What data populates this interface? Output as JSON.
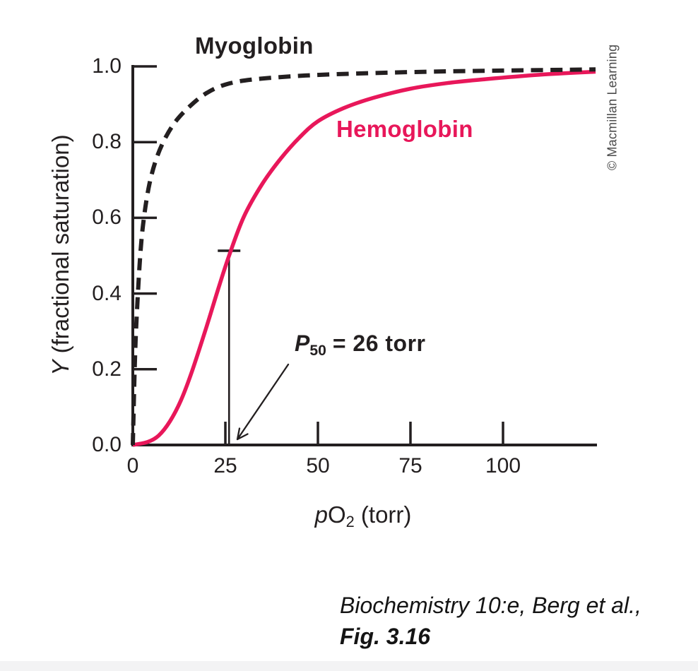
{
  "chart_data": {
    "type": "line",
    "title": "",
    "xlabel": {
      "italic": "p",
      "main": "O",
      "sub": "2",
      "suffix": " (torr)"
    },
    "ylabel": {
      "italic": "Y",
      "suffix": " (fractional saturation)"
    },
    "x_ticks": [
      "0",
      "25",
      "50",
      "75",
      "100"
    ],
    "y_ticks": [
      "0.0",
      "0.2",
      "0.4",
      "0.6",
      "0.8",
      "1.0"
    ],
    "xlim": [
      0,
      125
    ],
    "ylim": [
      0,
      1.0
    ],
    "grid": false,
    "legend_position": "inline-curve-labels",
    "axis_color": "#231f20",
    "series": [
      {
        "name": "Myoglobin",
        "line_style": "dashed",
        "color": "#231f20",
        "points": [
          [
            0,
            0
          ],
          [
            0.5,
            0.2
          ],
          [
            1,
            0.33
          ],
          [
            2,
            0.5
          ],
          [
            3,
            0.6
          ],
          [
            4.5,
            0.69
          ],
          [
            6.5,
            0.76
          ],
          [
            9,
            0.815
          ],
          [
            12,
            0.86
          ],
          [
            16,
            0.9
          ],
          [
            20,
            0.93
          ],
          [
            25,
            0.952
          ],
          [
            32,
            0.965
          ],
          [
            45,
            0.975
          ],
          [
            60,
            0.981
          ],
          [
            80,
            0.986
          ],
          [
            100,
            0.989
          ],
          [
            125,
            0.992
          ]
        ]
      },
      {
        "name": "Hemoglobin",
        "line_style": "solid",
        "color": "#e8175a",
        "points": [
          [
            0,
            0
          ],
          [
            4,
            0.008
          ],
          [
            7,
            0.025
          ],
          [
            10,
            0.062
          ],
          [
            13,
            0.118
          ],
          [
            16,
            0.195
          ],
          [
            20,
            0.315
          ],
          [
            23,
            0.41
          ],
          [
            26,
            0.5
          ],
          [
            30,
            0.603
          ],
          [
            35,
            0.69
          ],
          [
            40,
            0.757
          ],
          [
            45,
            0.812
          ],
          [
            50,
            0.855
          ],
          [
            57,
            0.89
          ],
          [
            65,
            0.917
          ],
          [
            75,
            0.941
          ],
          [
            85,
            0.956
          ],
          [
            95,
            0.966
          ],
          [
            110,
            0.978
          ],
          [
            125,
            0.986
          ]
        ]
      }
    ],
    "annotation": {
      "label_p": "P",
      "label_sub": "50",
      "label_rest": "= 26 torr",
      "x": 26,
      "y": 0.5
    }
  },
  "labels": {
    "myoglobin": "Myoglobin",
    "hemoglobin": "Hemoglobin"
  },
  "watermark": "© Macmillan Learning",
  "citation": {
    "line1": "Biochemistry 10:e, Berg et al.,",
    "line2": "Fig. 3.16"
  }
}
